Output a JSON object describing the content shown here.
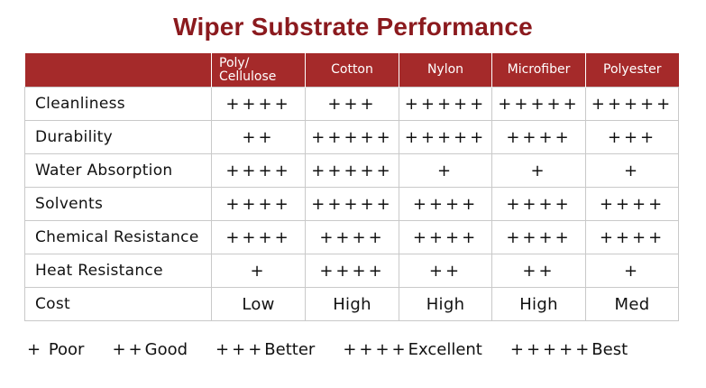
{
  "title": "Wiper Substrate Performance",
  "table": {
    "corner": "",
    "columns": [
      "Poly/ Cellulose",
      "Cotton",
      "Nylon",
      "Microfiber",
      "Polyester"
    ],
    "rows": [
      {
        "label": "Cleanliness",
        "values": [
          "++++",
          "+++",
          "+++++",
          "+++++",
          "+++++"
        ]
      },
      {
        "label": "Durability",
        "values": [
          "++",
          "+++++",
          "+++++",
          "++++",
          "+++"
        ]
      },
      {
        "label": "Water Absorption",
        "values": [
          "++++",
          "+++++",
          "+",
          "+",
          "+"
        ]
      },
      {
        "label": "Solvents",
        "values": [
          "++++",
          "+++++",
          "++++",
          "++++",
          "++++"
        ]
      },
      {
        "label": "Chemical Resistance",
        "values": [
          "++++",
          "++++",
          "++++",
          "++++",
          "++++"
        ]
      },
      {
        "label": "Heat Resistance",
        "values": [
          "+",
          "++++",
          "++",
          "++",
          "+"
        ]
      },
      {
        "label": "Cost",
        "values": [
          "Low",
          "High",
          "High",
          "High",
          "Med"
        ]
      }
    ]
  },
  "legend": [
    {
      "symbol": "+",
      "label": " Poor"
    },
    {
      "symbol": "++",
      "label": "Good"
    },
    {
      "symbol": "+++",
      "label": "Better"
    },
    {
      "symbol": "++++",
      "label": "Excellent"
    },
    {
      "symbol": "+++++",
      "label": "Best"
    }
  ],
  "colors": {
    "title": "#8B1A1E",
    "header_bg": "#A52A2A",
    "header_text": "#FFFFFF",
    "grid": "#C9C9C9"
  }
}
